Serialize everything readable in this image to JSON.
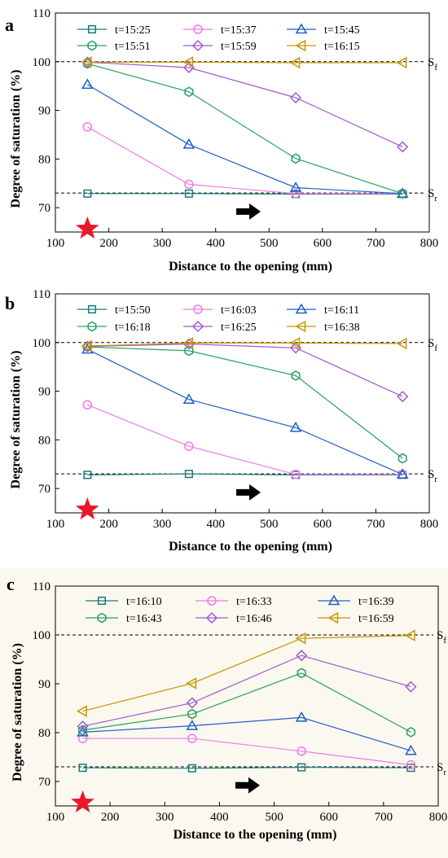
{
  "figure": {
    "panels": [
      "a",
      "b",
      "c"
    ],
    "ref_labels": {
      "upper": "S",
      "upper_sub": "f",
      "lower": "S",
      "lower_sub": "r"
    }
  },
  "colors": {
    "series": [
      "#1a7a7a",
      "#f07ae8",
      "#1f5fc4",
      "#27a060",
      "#a05ad2",
      "#c89600"
    ],
    "markers": [
      "square",
      "circle",
      "triangle",
      "hexagon",
      "diamond",
      "triangle-left"
    ],
    "star": "#e8182a",
    "arrow": "#000000",
    "reference_line": "#000000"
  },
  "chart_data": [
    {
      "type": "line",
      "panel": "a",
      "xlabel": "Distance to the opening (mm)",
      "ylabel": "Degree of saturation (%)",
      "xlim": [
        100,
        800
      ],
      "ylim": [
        65,
        110
      ],
      "xticks": [
        100,
        200,
        300,
        400,
        500,
        600,
        700,
        800
      ],
      "yticks": [
        70,
        80,
        90,
        100,
        110
      ],
      "x": [
        160,
        350,
        550,
        750
      ],
      "reference_lines": [
        {
          "y": 100,
          "label": "Sf"
        },
        {
          "y": 73,
          "label": "Sr"
        }
      ],
      "star": {
        "x": 160,
        "y": 65.5
      },
      "arrow": {
        "x": 460,
        "y": 69.2
      },
      "legend_position": "top",
      "series": [
        {
          "name": "t=15:25",
          "values": [
            72.9,
            72.9,
            72.8,
            72.8
          ]
        },
        {
          "name": "t=15:37",
          "values": [
            86.6,
            74.8,
            72.9,
            72.9
          ]
        },
        {
          "name": "t=15:45",
          "values": [
            95.3,
            83.0,
            74.1,
            72.9
          ]
        },
        {
          "name": "t=15:51",
          "values": [
            99.6,
            93.8,
            80.1,
            72.9
          ]
        },
        {
          "name": "t=15:59",
          "values": [
            99.9,
            98.8,
            92.6,
            82.5
          ]
        },
        {
          "name": "t=16:15",
          "values": [
            99.9,
            99.9,
            99.8,
            99.8
          ]
        }
      ]
    },
    {
      "type": "line",
      "panel": "b",
      "xlabel": "Distance to the opening (mm)",
      "ylabel": "Degree of saturation (%)",
      "xlim": [
        100,
        800
      ],
      "ylim": [
        65,
        110
      ],
      "xticks": [
        100,
        200,
        300,
        400,
        500,
        600,
        700,
        800
      ],
      "yticks": [
        70,
        80,
        90,
        100,
        110
      ],
      "x": [
        160,
        350,
        550,
        750
      ],
      "reference_lines": [
        {
          "y": 100,
          "label": "Sf"
        },
        {
          "y": 73,
          "label": "Sr"
        }
      ],
      "star": {
        "x": 160,
        "y": 65.5
      },
      "arrow": {
        "x": 460,
        "y": 69.2
      },
      "legend_position": "top",
      "series": [
        {
          "name": "t=15:50",
          "values": [
            72.8,
            73.0,
            72.8,
            72.8
          ]
        },
        {
          "name": "t=16:03",
          "values": [
            87.2,
            78.7,
            72.9,
            72.9
          ]
        },
        {
          "name": "t=16:11",
          "values": [
            98.6,
            88.3,
            82.5,
            72.9
          ]
        },
        {
          "name": "t=16:18",
          "values": [
            99.1,
            98.3,
            93.2,
            76.2
          ]
        },
        {
          "name": "t=16:25",
          "values": [
            99.2,
            99.7,
            98.9,
            88.9
          ]
        },
        {
          "name": "t=16:38",
          "values": [
            99.3,
            99.9,
            99.9,
            99.8
          ]
        }
      ]
    },
    {
      "type": "line",
      "panel": "c",
      "xlabel": "Distance to the opening (mm)",
      "ylabel": "Degree of saturation (%)",
      "xlim": [
        100,
        800
      ],
      "ylim": [
        65,
        110
      ],
      "xticks": [
        100,
        200,
        300,
        400,
        500,
        600,
        700,
        800
      ],
      "yticks": [
        70,
        80,
        90,
        100,
        110
      ],
      "x": [
        150,
        350,
        550,
        750
      ],
      "reference_lines": [
        {
          "y": 100,
          "label": "Sf"
        },
        {
          "y": 73,
          "label": "Sr"
        }
      ],
      "star": {
        "x": 150,
        "y": 65.5
      },
      "arrow": {
        "x": 450,
        "y": 69.2
      },
      "legend_position": "top",
      "series": [
        {
          "name": "t=16:10",
          "values": [
            72.8,
            72.7,
            72.9,
            72.8
          ]
        },
        {
          "name": "t=16:33",
          "values": [
            78.8,
            78.8,
            76.2,
            73.4
          ]
        },
        {
          "name": "t=16:39",
          "values": [
            80.1,
            81.4,
            83.1,
            76.3
          ]
        },
        {
          "name": "t=16:43",
          "values": [
            80.5,
            83.8,
            92.2,
            80.1
          ]
        },
        {
          "name": "t=16:46",
          "values": [
            81.3,
            86.1,
            95.8,
            89.4
          ]
        },
        {
          "name": "t=16:59",
          "values": [
            84.4,
            90.1,
            99.3,
            99.9
          ]
        }
      ]
    }
  ]
}
